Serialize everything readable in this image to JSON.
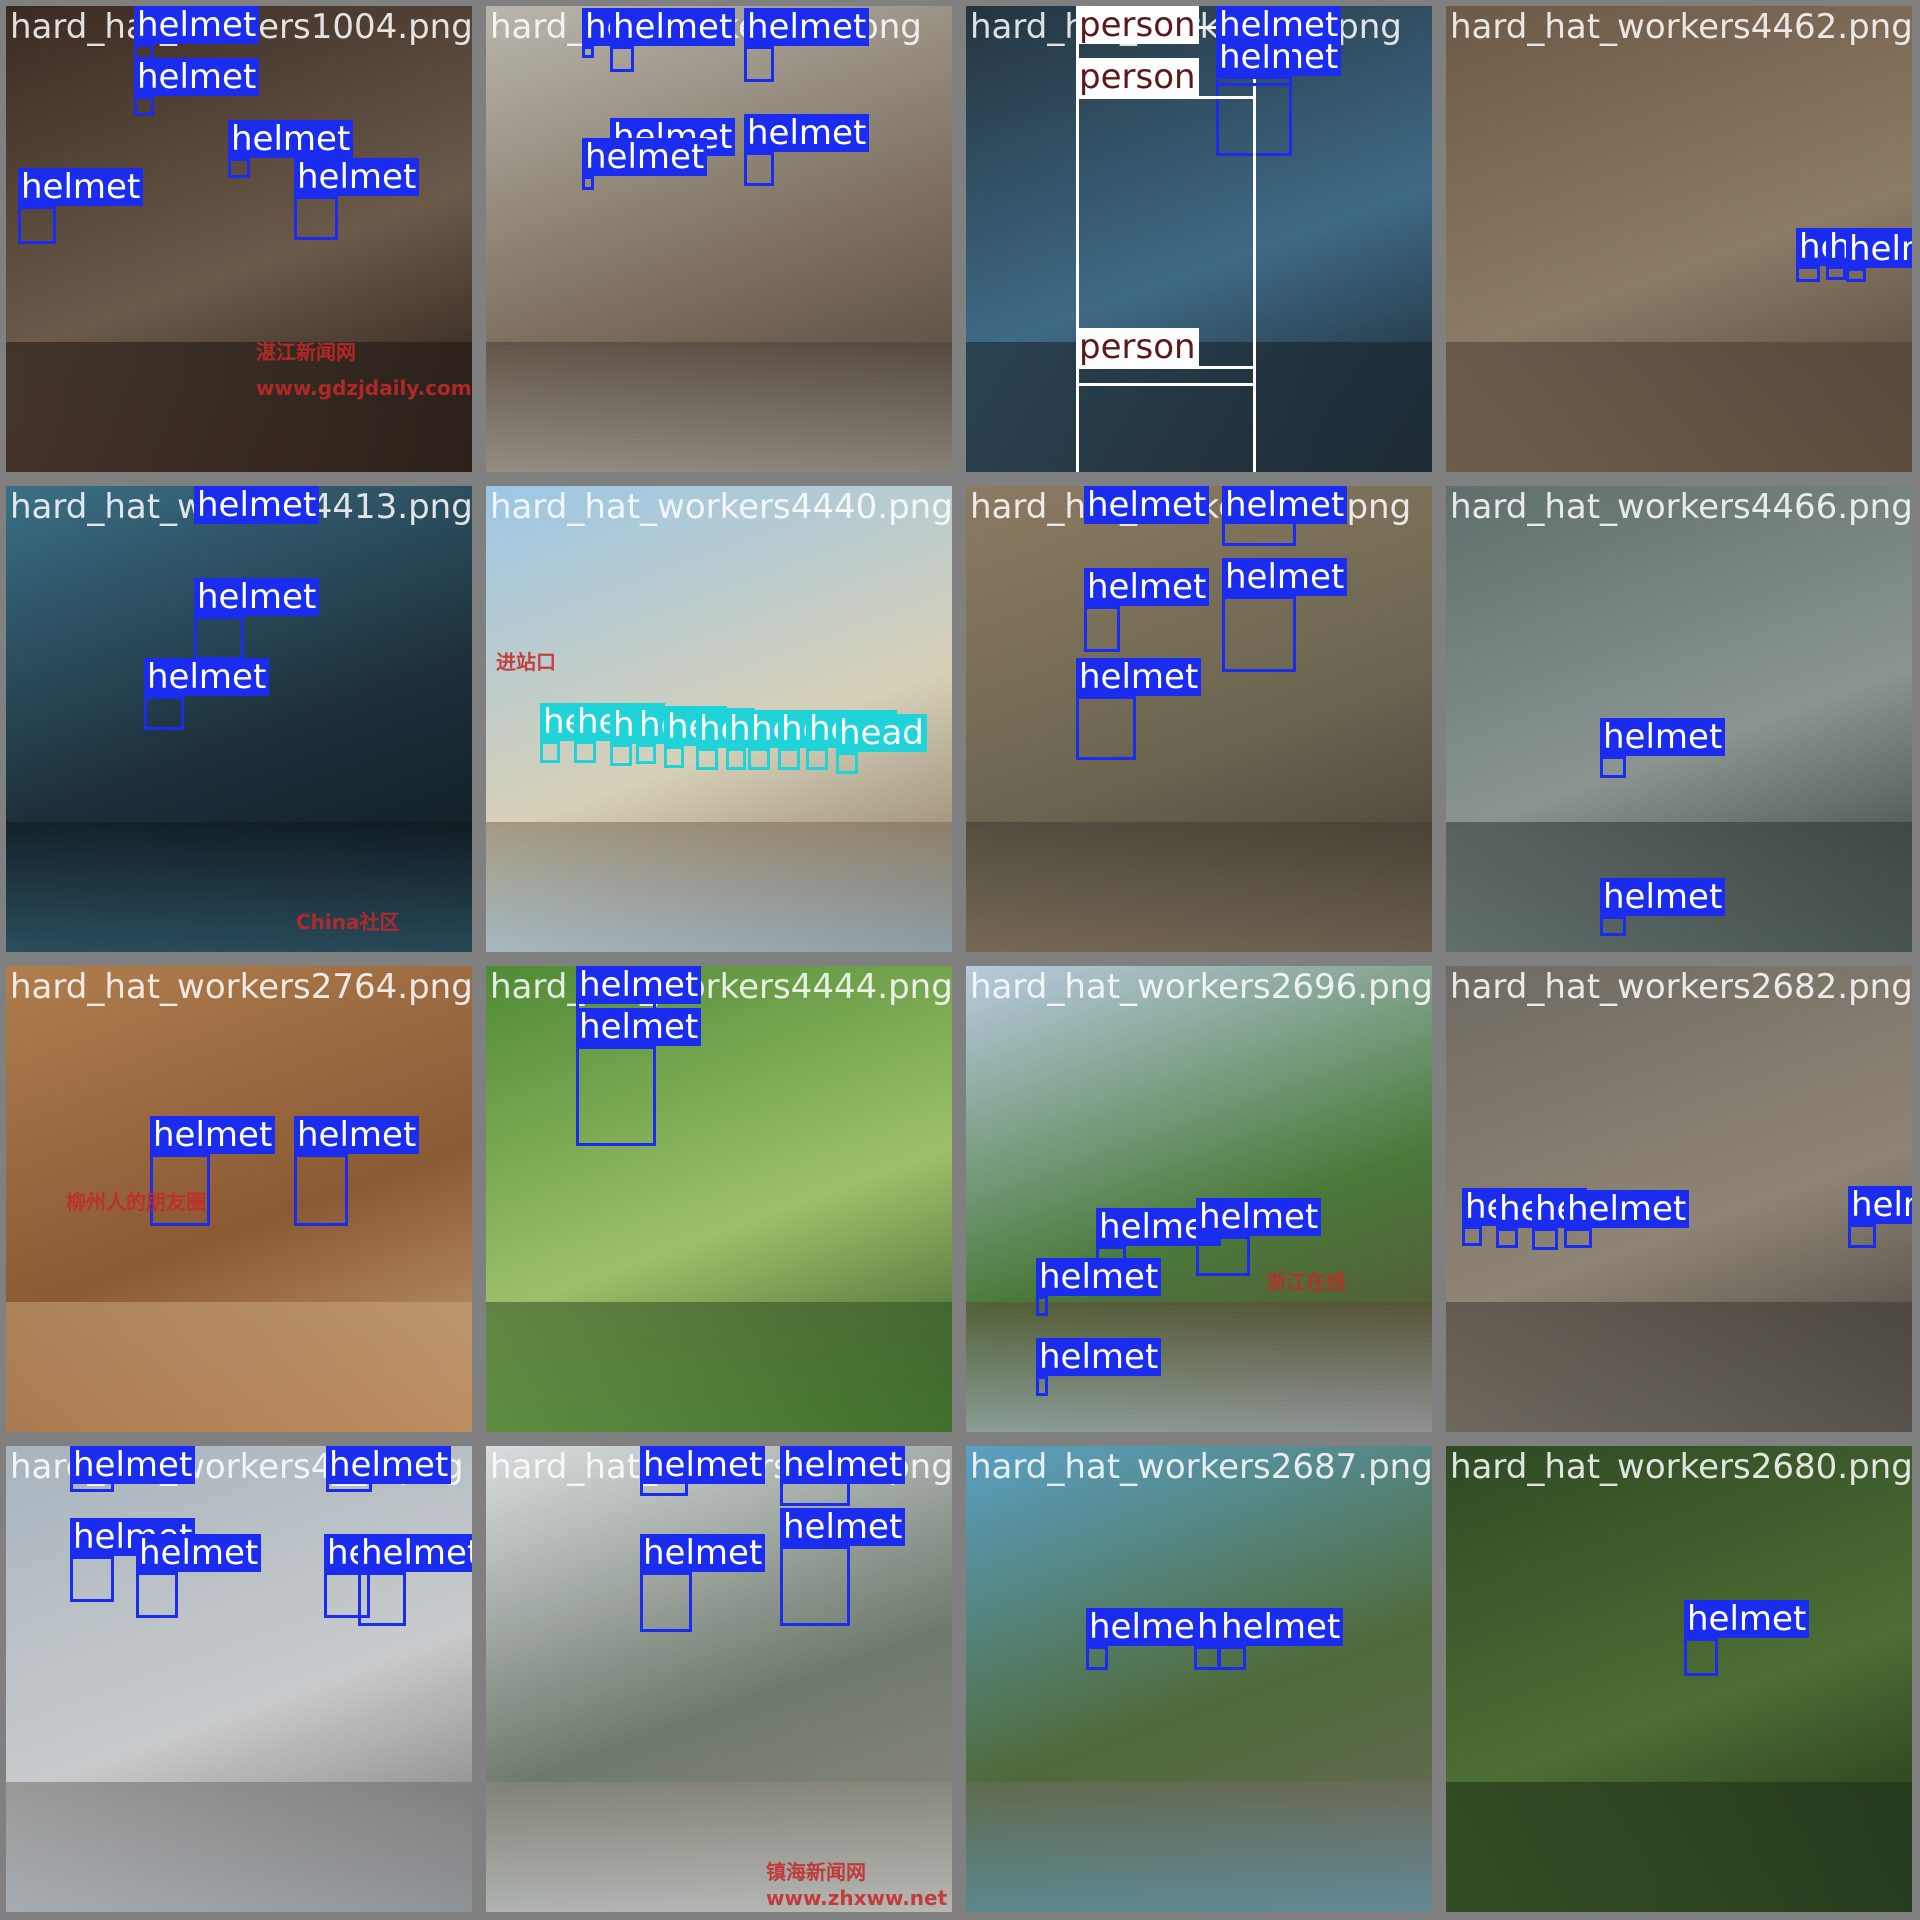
{
  "colors": {
    "helmet": "#1a2cf0",
    "head": "#1fd3d8",
    "person": "#ffffff",
    "tile_border": "#808080"
  },
  "labels": {
    "helmet": "helmet",
    "head": "head",
    "person": "person"
  },
  "tiles": [
    {
      "file": "hard_hat_workers1004.png",
      "scene": "#3a2a22,#6b5a4a,#1c1410"
    },
    {
      "file": "hard_hat_workers4__.png",
      "scene": "#b9b6ad,#7c6f5e,#4a4038"
    },
    {
      "file": "hard_hat_workers__2.png",
      "scene": "#24343f,#3f6a86,#161e24"
    },
    {
      "file": "hard_hat_workers4462.png",
      "scene": "#6d5a46,#8b7a66,#4a3c30"
    },
    {
      "file": "hard_hat_workers4413.png",
      "scene": "#3b6f86,#1c2e38,#0e171c"
    },
    {
      "file": "hard_hat_workers4440.png",
      "scene": "#9cc7e6,#d7d0b8,#7a6a55"
    },
    {
      "file": "hard_hat_workers446.png",
      "scene": "#8c7a62,#6a6550,#3f3a30"
    },
    {
      "file": "hard_hat_workers4466.png",
      "scene": "#5f6e6c,#8a9592,#2c3433"
    },
    {
      "file": "hard_hat_workers2764.png",
      "scene": "#b07d4e,#8a5a34,#c9a57a"
    },
    {
      "file": "hard_hat_workers4444.png",
      "scene": "#4f8a35,#9cc06a,#2e4f22"
    },
    {
      "file": "hard_hat_workers2696.png",
      "scene": "#b9cbe0,#4a7a3a,#5a4a36"
    },
    {
      "file": "hard_hat_workers2682.png",
      "scene": "#6e6a62,#8f8576,#3c3833"
    },
    {
      "file": "hard_hat_workers4__5.png",
      "scene": "#a8b4be,#c8cbcc,#6f6c68"
    },
    {
      "file": "hard_hat_workers2727.png",
      "scene": "#d9dde0,#6f7a6c,#8e8a80"
    },
    {
      "file": "hard_hat_workers2687.png",
      "scene": "#5aa0c4,#4f6a3a,#6f6a60"
    },
    {
      "file": "hard_hat_workers2680.png",
      "scene": "#2f4a24,#4c6e34,#1c2c16"
    }
  ],
  "watermarks": [
    {
      "tile": 0,
      "text": "湛江新闻网"
    },
    {
      "tile": 0,
      "text": "www.gdzjdaily.com.cn"
    },
    {
      "tile": 4,
      "text": "China社区"
    },
    {
      "tile": 5,
      "text": "进站口"
    },
    {
      "tile": 8,
      "text": "柳州人的朋友圈"
    },
    {
      "tile": 13,
      "text": "镇海新闻网"
    },
    {
      "tile": 13,
      "text": "www.zhxww.net"
    },
    {
      "tile": 10,
      "text": "浙江在线"
    }
  ]
}
